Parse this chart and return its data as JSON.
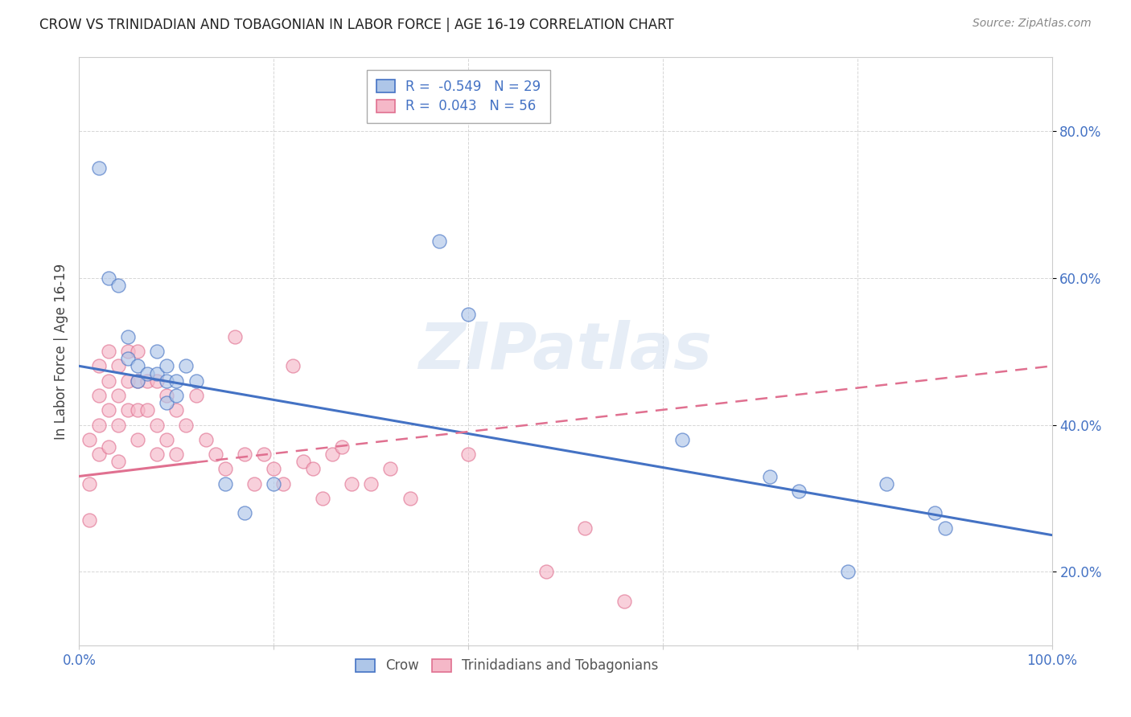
{
  "title": "CROW VS TRINIDADIAN AND TOBAGONIAN IN LABOR FORCE | AGE 16-19 CORRELATION CHART",
  "source": "Source: ZipAtlas.com",
  "ylabel": "In Labor Force | Age 16-19",
  "xlim": [
    0.0,
    1.0
  ],
  "ylim": [
    0.1,
    0.9
  ],
  "x_ticks": [
    0.0,
    0.2,
    0.4,
    0.6,
    0.8,
    1.0
  ],
  "x_tick_labels": [
    "0.0%",
    "",
    "",
    "",
    "",
    "100.0%"
  ],
  "y_ticks": [
    0.2,
    0.4,
    0.6,
    0.8
  ],
  "y_tick_labels": [
    "20.0%",
    "40.0%",
    "60.0%",
    "80.0%"
  ],
  "crow_color": "#aec6e8",
  "trinidadian_color": "#f5b8c8",
  "crow_line_color": "#4472c4",
  "trinidadian_line_color": "#e07090",
  "crow_R": -0.549,
  "crow_N": 29,
  "trinidadian_R": 0.043,
  "trinidadian_N": 56,
  "legend_crow_label": "Crow",
  "legend_trinidadian_label": "Trinidadians and Tobagonians",
  "watermark": "ZIPatlas",
  "background_color": "#ffffff",
  "crow_x": [
    0.02,
    0.03,
    0.04,
    0.05,
    0.05,
    0.06,
    0.06,
    0.07,
    0.08,
    0.08,
    0.09,
    0.09,
    0.09,
    0.1,
    0.1,
    0.11,
    0.12,
    0.15,
    0.17,
    0.2,
    0.37,
    0.4,
    0.62,
    0.71,
    0.74,
    0.79,
    0.83,
    0.88,
    0.89
  ],
  "crow_y": [
    0.75,
    0.6,
    0.59,
    0.52,
    0.49,
    0.48,
    0.46,
    0.47,
    0.5,
    0.47,
    0.48,
    0.46,
    0.43,
    0.46,
    0.44,
    0.48,
    0.46,
    0.32,
    0.28,
    0.32,
    0.65,
    0.55,
    0.38,
    0.33,
    0.31,
    0.2,
    0.32,
    0.28,
    0.26
  ],
  "trinidadian_x": [
    0.01,
    0.01,
    0.01,
    0.02,
    0.02,
    0.02,
    0.02,
    0.03,
    0.03,
    0.03,
    0.03,
    0.04,
    0.04,
    0.04,
    0.04,
    0.05,
    0.05,
    0.05,
    0.06,
    0.06,
    0.06,
    0.06,
    0.07,
    0.07,
    0.08,
    0.08,
    0.08,
    0.09,
    0.09,
    0.1,
    0.1,
    0.11,
    0.12,
    0.13,
    0.14,
    0.15,
    0.16,
    0.17,
    0.18,
    0.19,
    0.2,
    0.21,
    0.22,
    0.23,
    0.24,
    0.25,
    0.26,
    0.27,
    0.28,
    0.3,
    0.32,
    0.34,
    0.4,
    0.48,
    0.52,
    0.56
  ],
  "trinidadian_y": [
    0.38,
    0.32,
    0.27,
    0.48,
    0.44,
    0.4,
    0.36,
    0.5,
    0.46,
    0.42,
    0.37,
    0.48,
    0.44,
    0.4,
    0.35,
    0.5,
    0.46,
    0.42,
    0.5,
    0.46,
    0.42,
    0.38,
    0.46,
    0.42,
    0.46,
    0.4,
    0.36,
    0.44,
    0.38,
    0.42,
    0.36,
    0.4,
    0.44,
    0.38,
    0.36,
    0.34,
    0.52,
    0.36,
    0.32,
    0.36,
    0.34,
    0.32,
    0.48,
    0.35,
    0.34,
    0.3,
    0.36,
    0.37,
    0.32,
    0.32,
    0.34,
    0.3,
    0.36,
    0.2,
    0.26,
    0.16
  ]
}
